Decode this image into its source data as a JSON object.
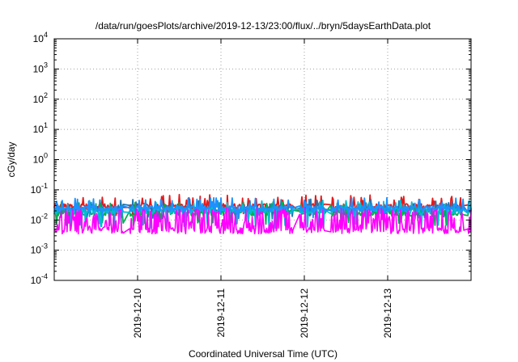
{
  "chart_data": {
    "type": "line",
    "title": "/data/run/goesPlots/archive/2019-12-13/23:00/flux/../bryn/5daysEarthData.plot",
    "xlabel": "Coordinated Universal Time (UTC)",
    "ylabel": "cGy/day",
    "yscale": "log",
    "ylim": [
      0.0001,
      10000
    ],
    "y_ticks": [
      {
        "value": 0.0001,
        "base": "10",
        "exp": "-4"
      },
      {
        "value": 0.001,
        "base": "10",
        "exp": "-3"
      },
      {
        "value": 0.01,
        "base": "10",
        "exp": "-2"
      },
      {
        "value": 0.1,
        "base": "10",
        "exp": "-1"
      },
      {
        "value": 1,
        "base": "10",
        "exp": "0"
      },
      {
        "value": 10,
        "base": "10",
        "exp": "1"
      },
      {
        "value": 100,
        "base": "10",
        "exp": "2"
      },
      {
        "value": 1000,
        "base": "10",
        "exp": "3"
      },
      {
        "value": 10000,
        "base": "10",
        "exp": "4"
      }
    ],
    "xlim": [
      "2019-12-09T00:00",
      "2019-12-14T00:00"
    ],
    "x_ticks": [
      "2019-12-10",
      "2019-12-11",
      "2019-12-12",
      "2019-12-13"
    ],
    "grid": true,
    "legend": "none",
    "series": [
      {
        "color": "#e41a1c",
        "baseline": 0.028,
        "spike_max": 0.07,
        "low": 0.015
      },
      {
        "color": "#1f77b4",
        "baseline": 0.022,
        "spike_max": 0.05,
        "low": 0.012
      },
      {
        "color": "#00b050",
        "baseline": 0.017,
        "spike_max": 0.04,
        "low": 0.007
      },
      {
        "color": "#00bcd4",
        "baseline": 0.02,
        "spike_max": 0.045,
        "low": 0.006
      },
      {
        "color": "#1e90ff",
        "baseline": 0.024,
        "spike_max": 0.055,
        "low": 0.013
      },
      {
        "color": "#ff00ff",
        "baseline": 0.005,
        "spike_max": 0.025,
        "low": 0.0035
      }
    ],
    "data_gaps": [
      [
        "2019-12-09T20:00",
        "2019-12-09T21:30"
      ],
      [
        "2019-12-11T21:00",
        "2019-12-11T22:30"
      ],
      [
        "2019-12-12T06:00",
        "2019-12-12T07:30"
      ],
      [
        "2019-12-13T22:00",
        "2019-12-13T23:00"
      ]
    ]
  }
}
